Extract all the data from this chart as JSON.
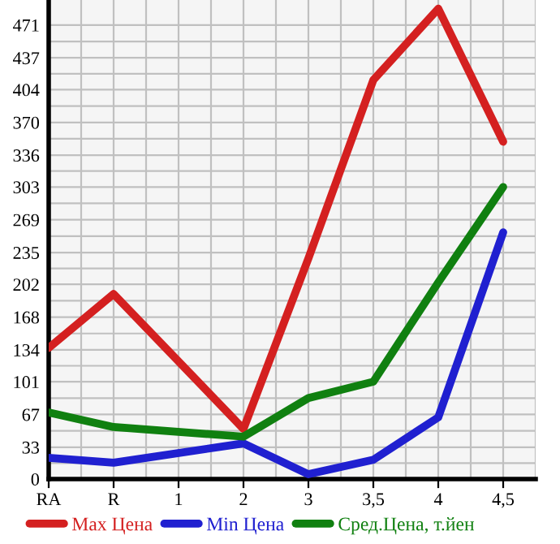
{
  "chart_data": {
    "type": "line",
    "categories": [
      "RA",
      "R",
      "1",
      "2",
      "3",
      "3,5",
      "4",
      "4,5"
    ],
    "series": [
      {
        "name": "Max Цена",
        "color": "#d42020",
        "values": [
          136,
          192,
          null,
          52,
          229,
          414,
          488,
          350
        ]
      },
      {
        "name": "Min Цена",
        "color": "#2020d0",
        "values": [
          22,
          17,
          null,
          37,
          5,
          20,
          64,
          256
        ]
      },
      {
        "name": "Сред.Цена, т.йен",
        "color": "#108010",
        "values": [
          69,
          54,
          null,
          44,
          84,
          101,
          204,
          303
        ]
      }
    ],
    "ylim": [
      0,
      497
    ],
    "yticks": [
      0,
      33,
      67,
      101,
      134,
      168,
      202,
      235,
      269,
      303,
      336,
      370,
      404,
      437,
      471
    ],
    "grid": true,
    "legend": "bottom",
    "marker": "none",
    "line_style": "solid"
  }
}
